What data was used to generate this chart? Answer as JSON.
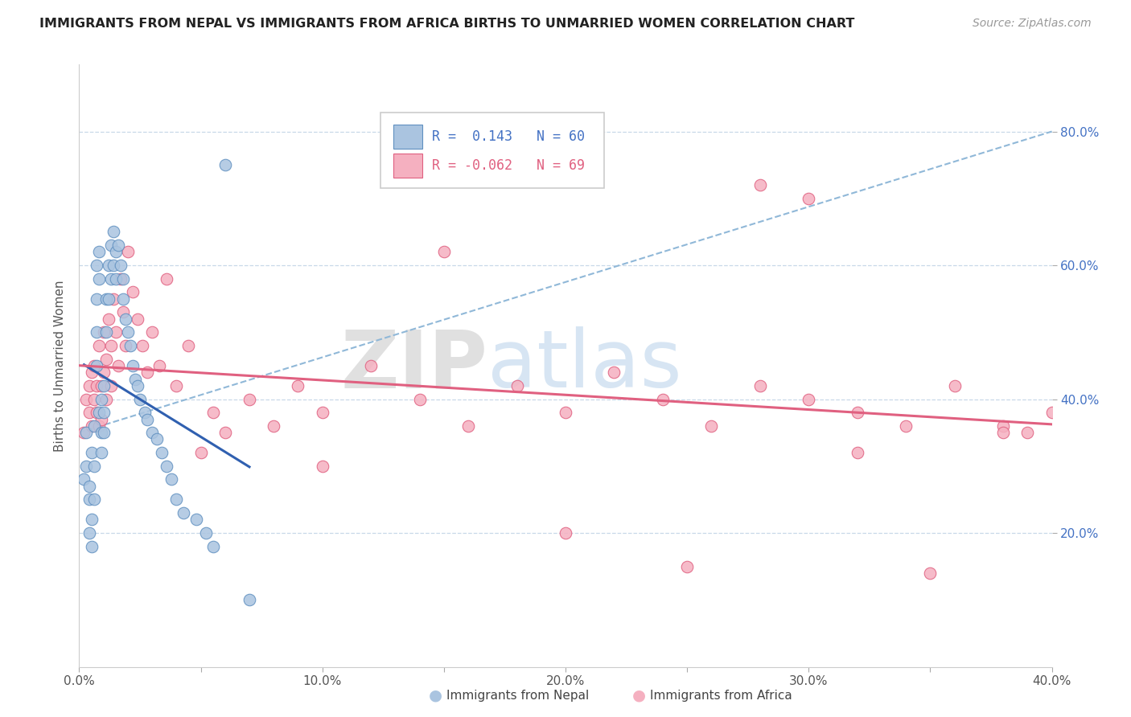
{
  "title": "IMMIGRANTS FROM NEPAL VS IMMIGRANTS FROM AFRICA BIRTHS TO UNMARRIED WOMEN CORRELATION CHART",
  "source": "Source: ZipAtlas.com",
  "ylabel": "Births to Unmarried Women",
  "xlim": [
    0.0,
    0.4
  ],
  "ylim": [
    0.0,
    0.9
  ],
  "xtick_labels": [
    "0.0%",
    "",
    "10.0%",
    "",
    "20.0%",
    "",
    "30.0%",
    "",
    "40.0%"
  ],
  "xtick_values": [
    0.0,
    0.05,
    0.1,
    0.15,
    0.2,
    0.25,
    0.3,
    0.35,
    0.4
  ],
  "ytick_labels": [
    "20.0%",
    "40.0%",
    "60.0%",
    "80.0%"
  ],
  "ytick_values": [
    0.2,
    0.4,
    0.6,
    0.8
  ],
  "nepal_color": "#aac4e0",
  "africa_color": "#f5b0c0",
  "nepal_edge_color": "#6090c0",
  "africa_edge_color": "#e06080",
  "nepal_line_color": "#3060b0",
  "africa_line_color": "#e06080",
  "dash_line_color": "#90b8d8",
  "background_color": "#ffffff",
  "grid_color": "#c8d8e8",
  "nepal_x": [
    0.002,
    0.003,
    0.003,
    0.004,
    0.004,
    0.004,
    0.005,
    0.005,
    0.005,
    0.006,
    0.006,
    0.006,
    0.007,
    0.007,
    0.007,
    0.007,
    0.008,
    0.008,
    0.008,
    0.009,
    0.009,
    0.009,
    0.01,
    0.01,
    0.01,
    0.011,
    0.011,
    0.012,
    0.012,
    0.013,
    0.013,
    0.014,
    0.014,
    0.015,
    0.015,
    0.016,
    0.017,
    0.018,
    0.018,
    0.019,
    0.02,
    0.021,
    0.022,
    0.023,
    0.024,
    0.025,
    0.027,
    0.028,
    0.03,
    0.032,
    0.034,
    0.036,
    0.038,
    0.04,
    0.043,
    0.048,
    0.052,
    0.055,
    0.06,
    0.07
  ],
  "nepal_y": [
    0.28,
    0.35,
    0.3,
    0.25,
    0.2,
    0.27,
    0.22,
    0.18,
    0.32,
    0.36,
    0.3,
    0.25,
    0.6,
    0.55,
    0.5,
    0.45,
    0.58,
    0.62,
    0.38,
    0.4,
    0.35,
    0.32,
    0.42,
    0.38,
    0.35,
    0.55,
    0.5,
    0.6,
    0.55,
    0.63,
    0.58,
    0.65,
    0.6,
    0.62,
    0.58,
    0.63,
    0.6,
    0.58,
    0.55,
    0.52,
    0.5,
    0.48,
    0.45,
    0.43,
    0.42,
    0.4,
    0.38,
    0.37,
    0.35,
    0.34,
    0.32,
    0.3,
    0.28,
    0.25,
    0.23,
    0.22,
    0.2,
    0.18,
    0.75,
    0.1
  ],
  "africa_x": [
    0.002,
    0.003,
    0.004,
    0.004,
    0.005,
    0.005,
    0.006,
    0.006,
    0.007,
    0.007,
    0.008,
    0.008,
    0.009,
    0.009,
    0.01,
    0.01,
    0.011,
    0.011,
    0.012,
    0.013,
    0.013,
    0.014,
    0.015,
    0.016,
    0.017,
    0.018,
    0.019,
    0.02,
    0.022,
    0.024,
    0.026,
    0.028,
    0.03,
    0.033,
    0.036,
    0.04,
    0.045,
    0.05,
    0.055,
    0.06,
    0.07,
    0.08,
    0.09,
    0.1,
    0.12,
    0.14,
    0.16,
    0.18,
    0.2,
    0.22,
    0.24,
    0.26,
    0.28,
    0.3,
    0.32,
    0.34,
    0.36,
    0.38,
    0.39,
    0.4,
    0.28,
    0.3,
    0.15,
    0.2,
    0.25,
    0.1,
    0.35,
    0.38,
    0.32
  ],
  "africa_y": [
    0.35,
    0.4,
    0.38,
    0.42,
    0.36,
    0.44,
    0.4,
    0.45,
    0.38,
    0.42,
    0.36,
    0.48,
    0.42,
    0.37,
    0.5,
    0.44,
    0.4,
    0.46,
    0.52,
    0.48,
    0.42,
    0.55,
    0.5,
    0.45,
    0.58,
    0.53,
    0.48,
    0.62,
    0.56,
    0.52,
    0.48,
    0.44,
    0.5,
    0.45,
    0.58,
    0.42,
    0.48,
    0.32,
    0.38,
    0.35,
    0.4,
    0.36,
    0.42,
    0.38,
    0.45,
    0.4,
    0.36,
    0.42,
    0.38,
    0.44,
    0.4,
    0.36,
    0.42,
    0.4,
    0.38,
    0.36,
    0.42,
    0.36,
    0.35,
    0.38,
    0.72,
    0.7,
    0.62,
    0.2,
    0.15,
    0.3,
    0.14,
    0.35,
    0.32
  ]
}
